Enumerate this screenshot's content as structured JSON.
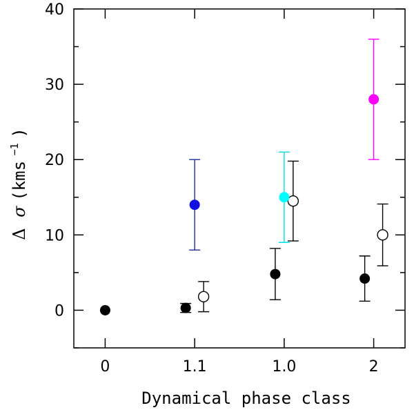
{
  "chart_data": {
    "type": "scatter",
    "title": "",
    "xlabel": "Dynamical phase class",
    "ylabel": {
      "delta": "Δ",
      "sigma": "σ",
      "units": "(kms",
      "exponent": "−1",
      "close": ")"
    },
    "ylim": [
      -5,
      40
    ],
    "xlim": [
      -0.35,
      3.35
    ],
    "grid": false,
    "categories": [
      "0",
      "1.1",
      "1.0",
      "2"
    ],
    "y_ticks": [
      0,
      10,
      20,
      30,
      40
    ],
    "series": [
      {
        "name": "black filled",
        "marker": "filled-circle",
        "color": "#000000",
        "points": [
          {
            "x": 0.0,
            "y": 0.0,
            "yerr_low": 0.0,
            "yerr_high": 0.0
          },
          {
            "x": 0.9,
            "y": 0.3,
            "yerr_low": 0.6,
            "yerr_high": 0.6
          },
          {
            "x": 1.9,
            "y": 4.8,
            "yerr_low": 3.4,
            "yerr_high": 3.4
          },
          {
            "x": 2.9,
            "y": 4.2,
            "yerr_low": 3.0,
            "yerr_high": 3.0
          }
        ]
      },
      {
        "name": "black open",
        "marker": "open-circle",
        "color": "#000000",
        "points": [
          {
            "x": 1.1,
            "y": 1.8,
            "yerr_low": 2.0,
            "yerr_high": 2.0
          },
          {
            "x": 2.1,
            "y": 14.5,
            "yerr_low": 5.3,
            "yerr_high": 5.3
          },
          {
            "x": 3.1,
            "y": 10.0,
            "yerr_low": 4.1,
            "yerr_high": 4.1
          }
        ]
      },
      {
        "name": "blue",
        "marker": "filled-circle",
        "color": "#1010e0",
        "errcolor": "#1a2a9a",
        "points": [
          {
            "x": 1.0,
            "y": 14.0,
            "yerr_low": 6.0,
            "yerr_high": 6.0
          }
        ]
      },
      {
        "name": "cyan",
        "marker": "filled-circle",
        "color": "#00ffff",
        "errcolor": "#00e0e0",
        "points": [
          {
            "x": 2.0,
            "y": 15.0,
            "yerr_low": 6.0,
            "yerr_high": 6.0
          }
        ]
      },
      {
        "name": "magenta",
        "marker": "filled-circle",
        "color": "#ff00ff",
        "errcolor": "#ff00ff",
        "points": [
          {
            "x": 3.0,
            "y": 28.0,
            "yerr_low": 8.0,
            "yerr_high": 8.0
          }
        ]
      }
    ]
  }
}
